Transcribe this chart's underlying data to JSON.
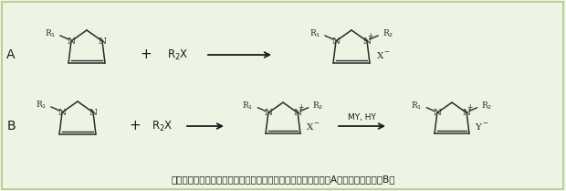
{
  "background_color": "#eef4e4",
  "border_color": "#adc98a",
  "text_color": "#1a1a1a",
  "caption": "离子液体的合成方法（以咪唑类离子液体为例）：直接合成法（A）和两步合成法（B）",
  "label_A": "A",
  "label_B": "B",
  "plus_sign": "+",
  "R2X": "R$_2$X",
  "MY_HY": "MY, HY",
  "arrow_color": "#1a1a1a",
  "struct_color": "#2a2a2a",
  "figsize": [
    6.2,
    2.09
  ],
  "dpi": 100,
  "font_chinese": "SimSun",
  "font_fallback": "DejaVu Sans"
}
